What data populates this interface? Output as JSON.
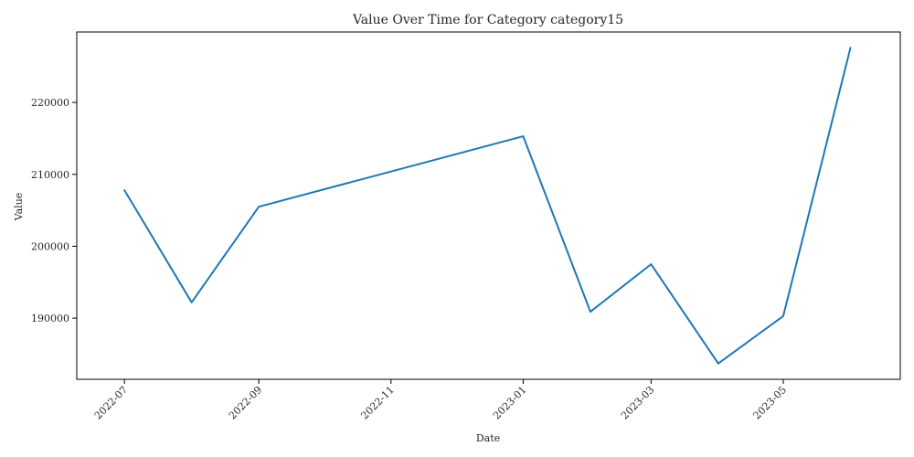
{
  "chart_data": {
    "type": "line",
    "title": "Value Over Time for Category category15",
    "xlabel": "Date",
    "ylabel": "Value",
    "x": [
      "2022-07-01",
      "2022-08-01",
      "2022-09-01",
      "2023-01-01",
      "2023-02-01",
      "2023-03-01",
      "2023-04-01",
      "2023-05-01",
      "2023-06-01"
    ],
    "series": [
      {
        "values": [
          207800,
          192200,
          205500,
          215300,
          190900,
          197500,
          183700,
          190300,
          227600
        ]
      }
    ],
    "x_ticks": [
      "2022-07-01",
      "2022-09-01",
      "2022-11-01",
      "2023-01-01",
      "2023-03-01",
      "2023-05-01"
    ],
    "x_tick_labels": [
      "2022-07",
      "2022-09",
      "2022-11",
      "2023-01",
      "2023-03",
      "2023-05"
    ],
    "y_ticks": [
      190000,
      200000,
      210000,
      220000
    ],
    "y_tick_labels": [
      "190000",
      "200000",
      "210000",
      "220000"
    ],
    "xlim": [
      "2022-06-09",
      "2023-06-24"
    ],
    "ylim": [
      181500,
      229800
    ],
    "grid": false,
    "colors": {
      "line": "#1f77b4",
      "axis": "#000000",
      "text": "#262626",
      "background": "#ffffff"
    }
  }
}
